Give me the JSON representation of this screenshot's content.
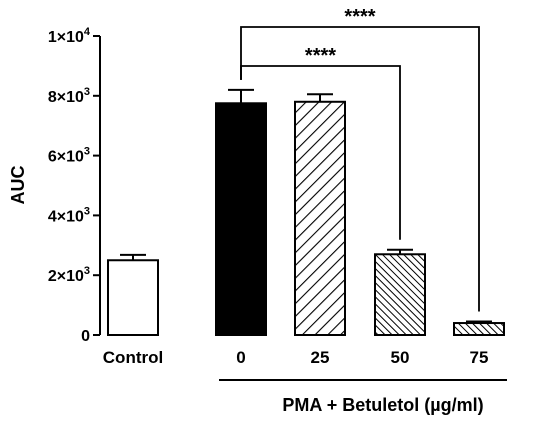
{
  "chart_data": {
    "type": "bar",
    "ylabel": "AUC",
    "ylim": [
      0,
      10000
    ],
    "yticks": [
      {
        "value": 0,
        "base": "0",
        "exp": ""
      },
      {
        "value": 2000,
        "base": "2×10",
        "exp": "3"
      },
      {
        "value": 4000,
        "base": "4×10",
        "exp": "3"
      },
      {
        "value": 6000,
        "base": "6×10",
        "exp": "3"
      },
      {
        "value": 8000,
        "base": "8×10",
        "exp": "3"
      },
      {
        "value": 10000,
        "base": "1×10",
        "exp": "4"
      }
    ],
    "categories": [
      "Control",
      "0",
      "25",
      "50",
      "75"
    ],
    "values": [
      2500,
      7750,
      7800,
      2700,
      400
    ],
    "errors": [
      180,
      450,
      250,
      150,
      50
    ],
    "fills": [
      "white",
      "solid",
      "hatch-wide",
      "hatch-dense",
      "hatch-dense"
    ],
    "group_label": "PMA + Betuletol (µg/ml)",
    "group_members": [
      "0",
      "25",
      "50",
      "75"
    ],
    "significance": [
      {
        "from": "0",
        "to": "50",
        "label": "****"
      },
      {
        "from": "0",
        "to": "75",
        "label": "****"
      }
    ],
    "colors": {
      "bar_stroke": "#000000",
      "solid_fill": "#000000",
      "background": "#ffffff"
    }
  }
}
